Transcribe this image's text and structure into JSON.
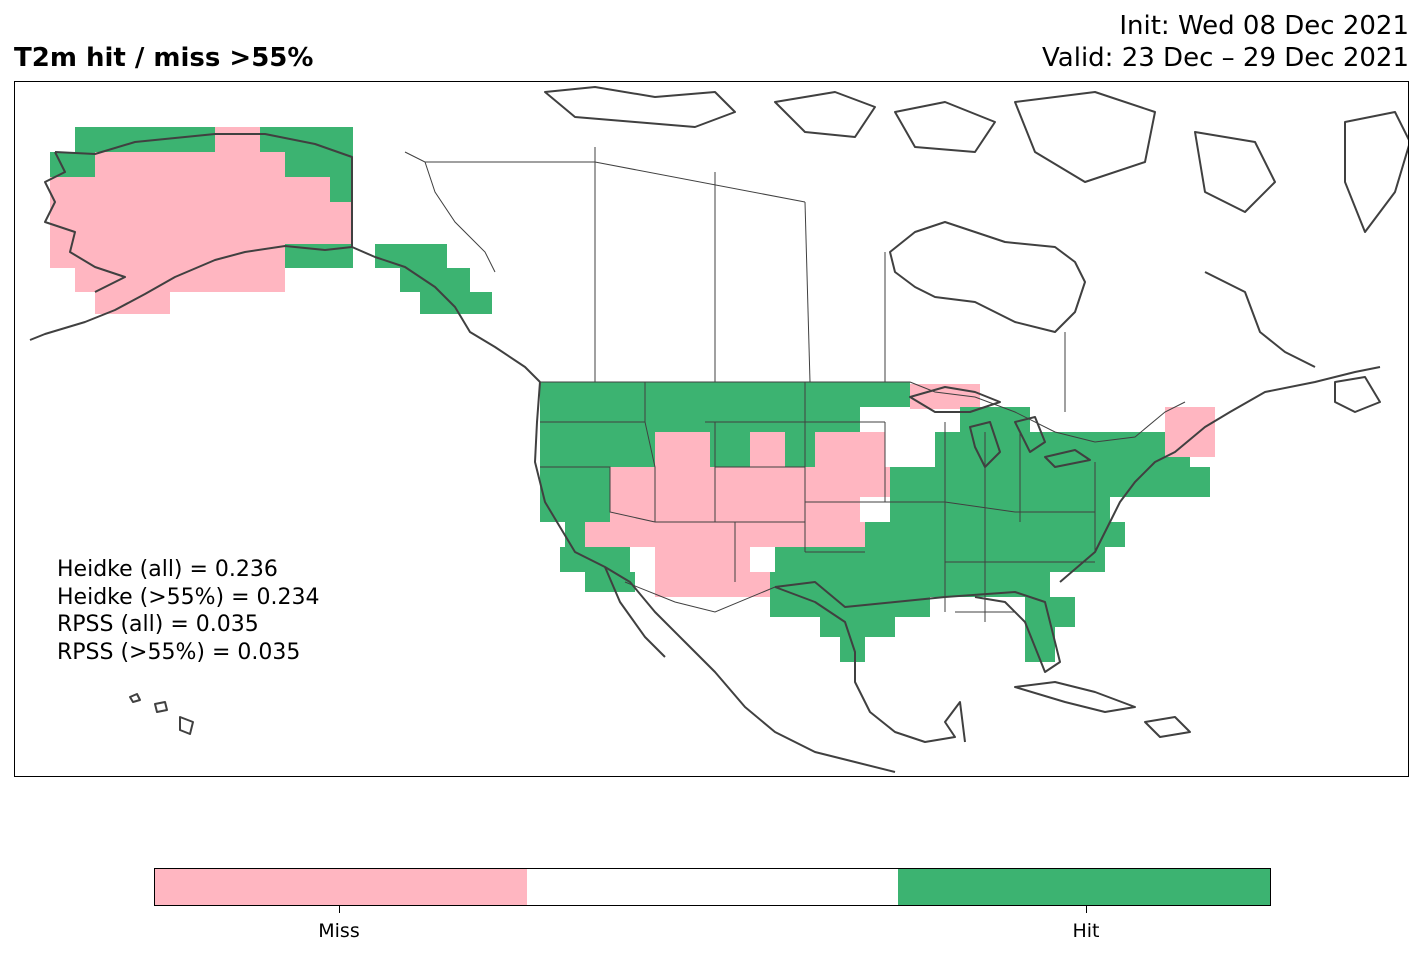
{
  "title": {
    "main": "T2m hit / miss  >55%",
    "init": "Init: Wed 08 Dec 2021",
    "valid": "Valid: 23 Dec – 29 Dec 2021"
  },
  "stats": [
    "Heidke (all) = 0.236",
    "Heidke (>55%) = 0.234",
    "RPSS (all) = 0.035",
    "RPSS (>55%) = 0.035"
  ],
  "legend": {
    "categories": [
      "Miss",
      "",
      "Hit"
    ],
    "colors": [
      "#ffb6c1",
      "#ffffff",
      "#3cb371"
    ]
  },
  "map_data": {
    "type": "categorical-grid",
    "region": "North America",
    "categories": [
      "miss",
      "hit"
    ],
    "colors": {
      "miss": "#ffb6c1",
      "hit": "#3cb371"
    },
    "coastline_color": "#404040",
    "border_color": "#404040"
  }
}
